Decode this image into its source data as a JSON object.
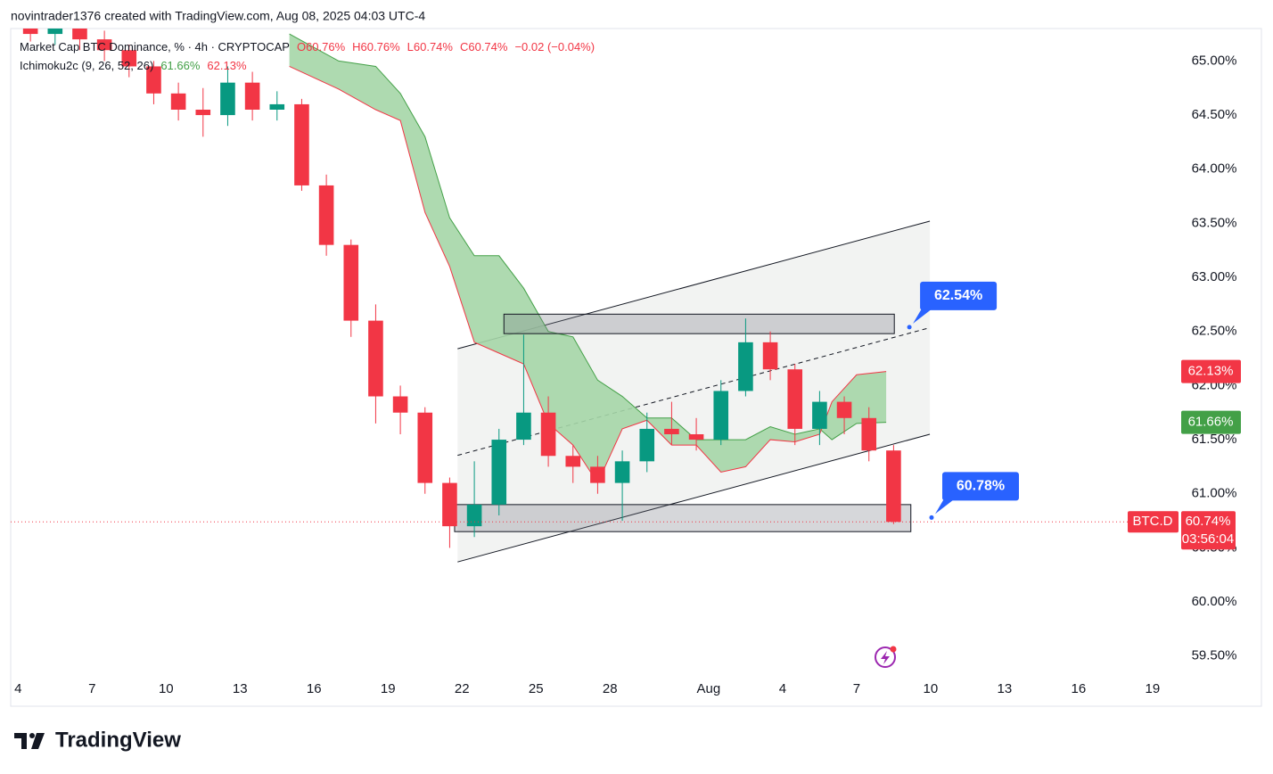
{
  "header": {
    "text": "novintrader1376 created with TradingView.com, Aug 08, 2025 04:03 UTC-4"
  },
  "chart_data": {
    "type": "candlestick",
    "title": "Market Cap BTC Dominance, % · 4h · CRYPTOCAP",
    "ohlc_legend": [
      {
        "value": 60.76,
        "label": "O60.76%"
      },
      {
        "value": 60.76,
        "label": "H60.76%"
      },
      {
        "value": 60.74,
        "label": "L60.74%"
      },
      {
        "value": 60.74,
        "label": "C60.74%"
      }
    ],
    "change_label": "−0.02 (−0.04%)",
    "up_color": "#089981",
    "down_color": "#f23645",
    "x": [
      4.5,
      5.5,
      6.5,
      7.5,
      8.5,
      9.5,
      10.5,
      11.5,
      12.5,
      13.5,
      14.5,
      15.5,
      16.5,
      17.5,
      18.5,
      19.5,
      20.5,
      21.5,
      22.5,
      23.5,
      24.5,
      25.5,
      26.5,
      27.5,
      28.5,
      29.5,
      30.5,
      31.5,
      32.5,
      33.5,
      34.5,
      35.5,
      36.5,
      37.5,
      38.5,
      39.5
    ],
    "open": [
      65.35,
      65.25,
      65.3,
      65.2,
      65.1,
      64.95,
      64.7,
      64.55,
      64.5,
      64.8,
      64.55,
      64.6,
      63.85,
      63.3,
      62.6,
      61.9,
      61.75,
      61.1,
      60.7,
      60.9,
      61.5,
      61.75,
      61.35,
      61.25,
      61.1,
      61.3,
      61.6,
      61.55,
      61.5,
      61.95,
      62.4,
      62.15,
      61.6,
      61.85,
      61.7,
      61.4
    ],
    "high": [
      65.42,
      65.38,
      65.35,
      65.28,
      65.15,
      65.0,
      64.8,
      64.75,
      64.95,
      64.9,
      64.72,
      64.65,
      63.95,
      63.35,
      62.75,
      62.0,
      61.8,
      61.15,
      61.3,
      61.6,
      62.47,
      61.9,
      61.45,
      61.35,
      61.4,
      61.75,
      61.85,
      61.7,
      62.05,
      62.62,
      62.5,
      62.2,
      61.95,
      61.9,
      61.8,
      61.45
    ],
    "low": [
      65.18,
      65.15,
      65.1,
      65.0,
      64.85,
      64.6,
      64.45,
      64.3,
      64.4,
      64.45,
      64.45,
      63.8,
      63.2,
      62.45,
      61.65,
      61.55,
      61.0,
      60.5,
      60.6,
      60.8,
      61.45,
      61.25,
      61.1,
      61.0,
      60.75,
      61.2,
      61.45,
      61.4,
      61.45,
      61.9,
      62.05,
      61.45,
      61.45,
      61.55,
      61.3,
      60.72
    ],
    "close": [
      65.25,
      65.3,
      65.2,
      65.1,
      64.95,
      64.7,
      64.55,
      64.5,
      64.8,
      64.55,
      64.6,
      63.85,
      63.3,
      62.6,
      61.9,
      61.75,
      61.1,
      60.7,
      60.9,
      61.5,
      61.75,
      61.35,
      61.25,
      61.1,
      61.3,
      61.6,
      61.55,
      61.5,
      61.95,
      62.4,
      62.15,
      61.6,
      61.85,
      61.7,
      61.4,
      60.74
    ],
    "indicator": {
      "label": "Ichimoku2c (9, 26, 52, 26)",
      "fill": "#a5d6a7",
      "x": [
        15,
        17,
        18.5,
        19.5,
        20.5,
        21.5,
        22.5,
        23.5,
        24.5,
        25.5,
        26.5,
        27.5,
        28.5,
        29.5,
        30.5,
        31.5,
        32.5,
        33.5,
        34.5,
        35.5,
        36.5,
        37,
        38,
        39.2
      ],
      "span_a": {
        "color": "#43a047",
        "value_label": "61.66%",
        "values": [
          65.25,
          65.0,
          64.95,
          64.7,
          64.3,
          63.55,
          63.2,
          63.2,
          62.9,
          62.5,
          62.45,
          62.05,
          61.9,
          61.7,
          61.7,
          61.5,
          61.5,
          61.5,
          61.62,
          61.55,
          61.6,
          61.5,
          61.65,
          61.66
        ]
      },
      "span_b": {
        "color": "#f23645",
        "value_label": "62.13%",
        "values": [
          64.95,
          64.74,
          64.55,
          64.45,
          63.6,
          63.1,
          62.4,
          62.3,
          62.2,
          61.65,
          61.45,
          61.1,
          61.6,
          61.68,
          61.45,
          61.45,
          61.2,
          61.25,
          61.5,
          61.48,
          61.55,
          61.85,
          62.1,
          62.13
        ]
      }
    },
    "channel": {
      "x": [
        21.82,
        40.97
      ],
      "lower": [
        60.37,
        61.55
      ],
      "upper": [
        62.34,
        63.52
      ]
    },
    "zones": [
      {
        "x": [
          23.7,
          39.53
        ],
        "range": [
          62.48,
          62.66
        ]
      },
      {
        "x": [
          21.7,
          40.2
        ],
        "range": [
          60.65,
          60.9
        ]
      }
    ],
    "annotations": [
      {
        "x": 40.14,
        "value": 62.54,
        "label": "62.54%"
      },
      {
        "x": 41.04,
        "value": 60.78,
        "label": "60.78%"
      }
    ],
    "last_price": {
      "value": 60.74,
      "label": "60.74%",
      "symbol": "BTC.D",
      "countdown": "03:56:04",
      "color": "#f23645"
    },
    "xlim": [
      3.7,
      50.8
    ],
    "xticks": [
      4,
      7,
      10,
      13,
      16,
      19,
      22,
      25,
      28,
      {
        "value": 32,
        "label": "Aug"
      },
      {
        "value": 35,
        "label": "4"
      },
      {
        "value": 38,
        "label": "7"
      },
      {
        "value": 41,
        "label": "10"
      },
      {
        "value": 44,
        "label": "13"
      },
      {
        "value": 47,
        "label": "16"
      },
      {
        "value": 50,
        "label": "19"
      }
    ],
    "ylim": [
      59.3,
      65.3
    ],
    "yticks": [
      {
        "value": 59.5,
        "label": "59.50%"
      },
      {
        "value": 60,
        "label": "60.00%"
      },
      {
        "value": 60.5,
        "label": "60.50%"
      },
      {
        "value": 61,
        "label": "61.00%"
      },
      {
        "value": 61.5,
        "label": "61.50%"
      },
      {
        "value": 62,
        "label": "62.00%"
      },
      {
        "value": 62.5,
        "label": "62.50%"
      },
      {
        "value": 63,
        "label": "63.00%"
      },
      {
        "value": 63.5,
        "label": "63.50%"
      },
      {
        "value": 64,
        "label": "64.00%"
      },
      {
        "value": 64.5,
        "label": "64.50%"
      },
      {
        "value": 65,
        "label": "65.00%"
      }
    ],
    "grid": false
  },
  "footer": {
    "brand": "TradingView"
  }
}
